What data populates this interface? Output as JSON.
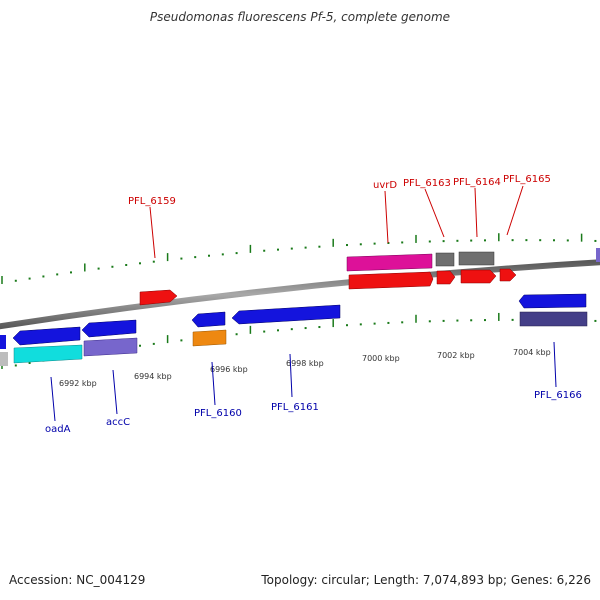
{
  "title": "Pseudomonas fluorescens Pf-5, complete genome",
  "footer": {
    "accession": "Accession: NC_004129",
    "summary": "Topology: circular; Length: 7,074,893 bp; Genes: 6,226"
  },
  "colors": {
    "backbone": "#8a8a8a",
    "tick": "#1a7a1a",
    "forward_label": "#cc0000",
    "reverse_label": "#0000aa"
  },
  "scale_labels": [
    "6992 kbp",
    "6994 kbp",
    "6996 kbp",
    "6998 kbp",
    "7000 kbp",
    "7002 kbp",
    "7004 kbp"
  ],
  "gene_labels": {
    "forward": [
      "PFL_6159",
      "uvrD",
      "PFL_6163",
      "PFL_6164",
      "PFL_6165"
    ],
    "reverse": [
      "oadA",
      "accC",
      "PFL_6160",
      "PFL_6161",
      "PFL_6166"
    ]
  },
  "feature_colors": {
    "red": "#ee1111",
    "magenta": "#dd1199",
    "gray": "#6f6f6f",
    "blue": "#1414dd",
    "cyan": "#11dddd",
    "lavender": "#7766cc",
    "orange": "#ee8811",
    "slate": "#443f88",
    "silver": "#bdbdbd"
  }
}
